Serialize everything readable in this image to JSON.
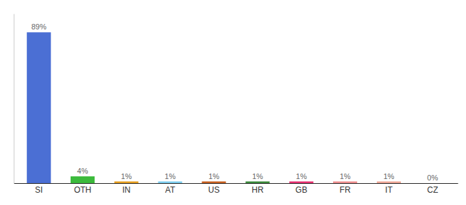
{
  "chart_data": {
    "type": "bar",
    "categories": [
      "SI",
      "OTH",
      "IN",
      "AT",
      "US",
      "HR",
      "GB",
      "FR",
      "IT",
      "CZ"
    ],
    "values": [
      89,
      4,
      1,
      1,
      1,
      1,
      1,
      1,
      1,
      0
    ],
    "value_labels": [
      "89%",
      "4%",
      "1%",
      "1%",
      "1%",
      "1%",
      "1%",
      "1%",
      "1%",
      "0%"
    ],
    "colors": [
      "#4b6fd4",
      "#3cba3c",
      "#e8a020",
      "#7ecef0",
      "#c86020",
      "#3a8a3a",
      "#e83070",
      "#f09090",
      "#f0a898",
      "#c8c8a0"
    ],
    "ylim": [
      0,
      100
    ],
    "grid": false,
    "data_labels": true,
    "tick_labels": "x"
  }
}
